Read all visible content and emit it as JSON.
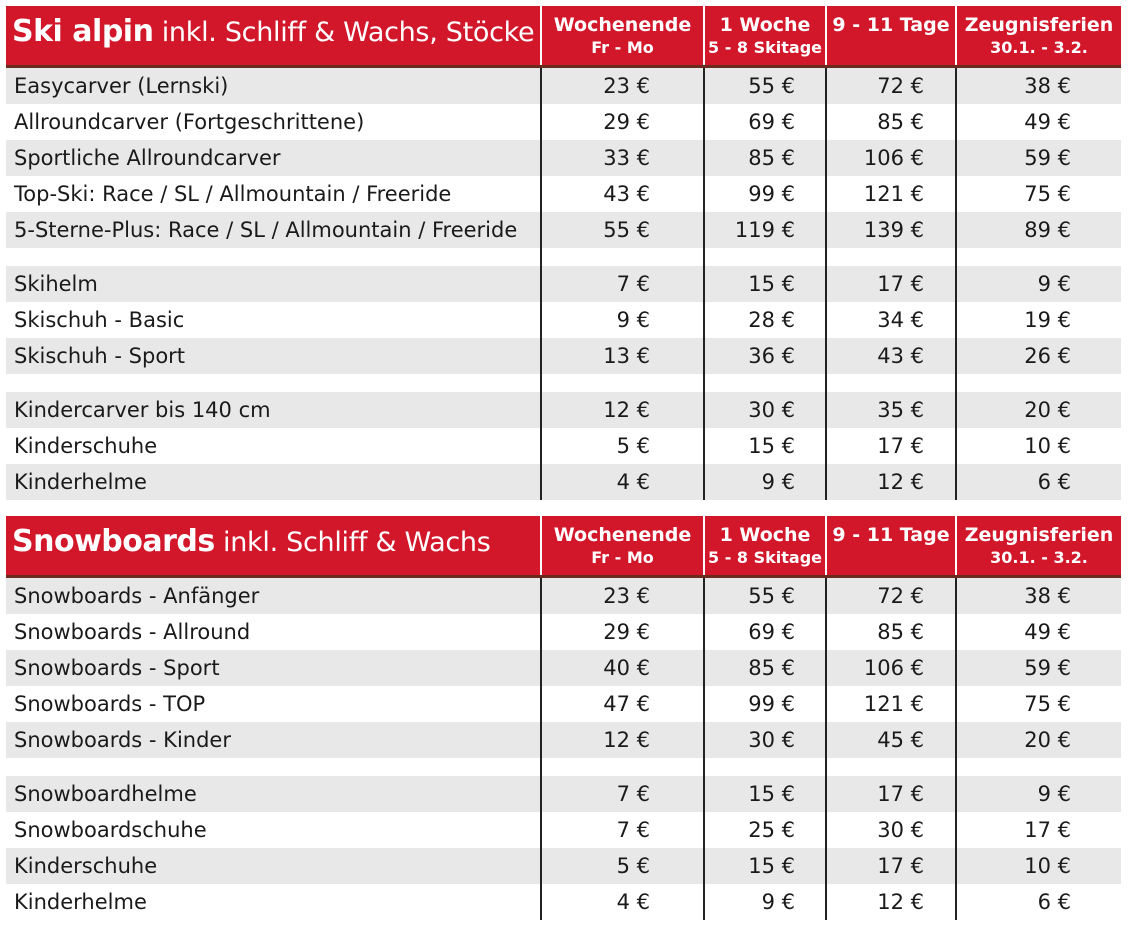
{
  "accent_color": "#d3172a",
  "columns": [
    {
      "line1": "Wochenende",
      "line2": "Fr - Mo"
    },
    {
      "line1": "1 Woche",
      "line2": "5 - 8 Skitage"
    },
    {
      "line1": "9 - 11 Tage",
      "line2": ""
    },
    {
      "line1": "Zeugnisferien",
      "line2": "30.1. - 3.2."
    }
  ],
  "ski": {
    "title_bold": "Ski alpin",
    "title_rest": " inkl. Schliff & Wachs, Stöcke",
    "groups": [
      [
        {
          "label": "Easycarver (Lernski)",
          "prices": [
            "23 €",
            "55 €",
            "72 €",
            "38 €"
          ]
        },
        {
          "label": "Allroundcarver (Fortgeschrittene)",
          "prices": [
            "29 €",
            "69 €",
            "85 €",
            "49 €"
          ]
        },
        {
          "label": "Sportliche Allroundcarver",
          "prices": [
            "33 €",
            "85 €",
            "106 €",
            "59 €"
          ]
        },
        {
          "label": "Top-Ski: Race / SL / Allmountain / Freeride",
          "prices": [
            "43 €",
            "99 €",
            "121 €",
            "75 €"
          ]
        },
        {
          "label": "5-Sterne-Plus: Race / SL / Allmountain / Freeride",
          "prices": [
            "55 €",
            "119 €",
            "139 €",
            "89 €"
          ]
        }
      ],
      [
        {
          "label": "Skihelm",
          "prices": [
            "7 €",
            "15 €",
            "17 €",
            "9 €"
          ]
        },
        {
          "label": "Skischuh - Basic",
          "prices": [
            "9 €",
            "28 €",
            "34 €",
            "19 €"
          ]
        },
        {
          "label": "Skischuh - Sport",
          "prices": [
            "13 €",
            "36 €",
            "43 €",
            "26 €"
          ]
        }
      ],
      [
        {
          "label": "Kindercarver bis 140 cm",
          "prices": [
            "12 €",
            "30 €",
            "35 €",
            "20 €"
          ]
        },
        {
          "label": "Kinderschuhe",
          "prices": [
            "5 €",
            "15 €",
            "17 €",
            "10 €"
          ]
        },
        {
          "label": "Kinderhelme",
          "prices": [
            "4 €",
            "9 €",
            "12 €",
            "6 €"
          ]
        }
      ]
    ]
  },
  "snowboard": {
    "title_bold": "Snowboards",
    "title_rest": " inkl. Schliff & Wachs",
    "groups": [
      [
        {
          "label": "Snowboards - Anfänger",
          "prices": [
            "23 €",
            "55 €",
            "72 €",
            "38 €"
          ]
        },
        {
          "label": "Snowboards - Allround",
          "prices": [
            "29 €",
            "69 €",
            "85 €",
            "49 €"
          ]
        },
        {
          "label": "Snowboards - Sport",
          "prices": [
            "40 €",
            "85 €",
            "106 €",
            "59 €"
          ]
        },
        {
          "label": "Snowboards - TOP",
          "prices": [
            "47 €",
            "99 €",
            "121 €",
            "75 €"
          ]
        },
        {
          "label": "Snowboards - Kinder",
          "prices": [
            "12 €",
            "30 €",
            "45 €",
            "20 €"
          ]
        }
      ],
      [
        {
          "label": "Snowboardhelme",
          "prices": [
            "7 €",
            "15 €",
            "17 €",
            "9 €"
          ]
        },
        {
          "label": "Snowboardschuhe",
          "prices": [
            "7 €",
            "25 €",
            "30 €",
            "17 €"
          ]
        },
        {
          "label": "Kinderschuhe",
          "prices": [
            "5 €",
            "15 €",
            "17 €",
            "10 €"
          ]
        },
        {
          "label": "Kinderhelme",
          "prices": [
            "4 €",
            "9 €",
            "12 €",
            "6 €"
          ]
        }
      ]
    ]
  }
}
